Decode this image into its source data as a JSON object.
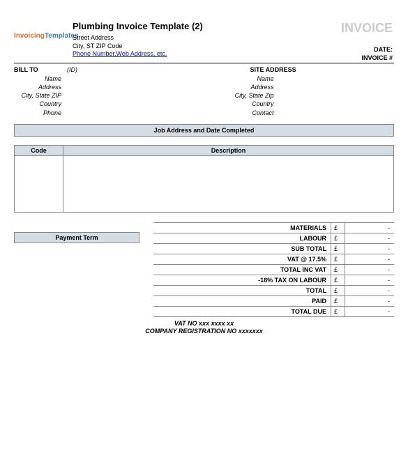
{
  "header": {
    "logo_invoicing": "Invoicing",
    "logo_templates": "Templates",
    "title": "Plumbing Invoice Template (2)",
    "street": "Street Address",
    "city_line": "City, ST  ZIP Code",
    "contact_link": "Phone Number,Web Address, etc.",
    "invoice_label": "INVOICE",
    "date_label": "DATE:",
    "invoice_no_label": "INVOICE #"
  },
  "bill_to": {
    "header": "BILL TO",
    "id_label": "(ID)",
    "fields": {
      "name": "Name",
      "address": "Address",
      "csz": "City, State ZIP",
      "country": "Country",
      "phone": "Phone"
    }
  },
  "site": {
    "header": "SITE ADDRESS",
    "fields": {
      "name": "Name",
      "address": "Address",
      "csz": "City, State Zip",
      "country": "Country",
      "contact": "Contact"
    }
  },
  "job_bar": "Job Address and Date Completed",
  "items": {
    "col_code": "Code",
    "col_desc": "Description"
  },
  "payment_term_label": "Payment Term",
  "totals": {
    "currency": "£",
    "rows": [
      {
        "label": "MATERIALS",
        "value": "-"
      },
      {
        "label": "LABOUR",
        "value": "-"
      },
      {
        "label": "SUB TOTAL",
        "value": "-"
      },
      {
        "label": "VAT @ 17.5%",
        "value": "-"
      },
      {
        "label": "TOTAL INC VAT",
        "value": "-"
      },
      {
        "label": "-18% TAX ON LABOUR",
        "value": "-"
      },
      {
        "label": "TOTAL",
        "value": "-"
      },
      {
        "label": "PAID",
        "value": "-"
      },
      {
        "label": "TOTAL DUE",
        "value": "-"
      }
    ]
  },
  "footer": {
    "vat_line": "VAT NO  xxx xxxx xx",
    "reg_line": "COMPANY REGISTRATION NO  xxxxxxx"
  },
  "colors": {
    "band_bg": "#d4dde4",
    "border": "#888888",
    "invoice_grey": "#cccccc",
    "link": "#0000ee"
  }
}
